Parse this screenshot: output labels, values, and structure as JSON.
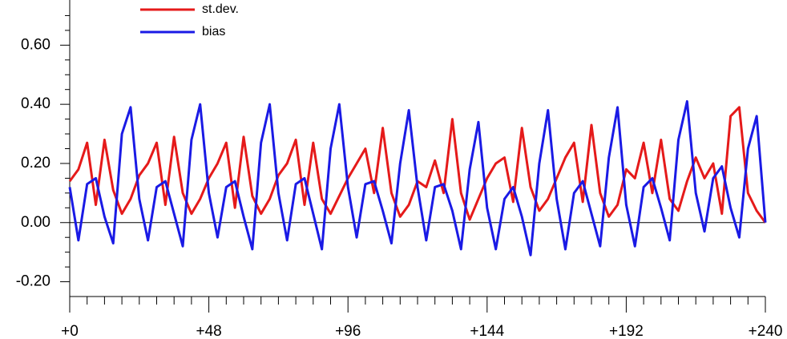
{
  "chart_data": {
    "type": "line",
    "x": [
      0,
      3,
      6,
      9,
      12,
      15,
      18,
      21,
      24,
      27,
      30,
      33,
      36,
      39,
      42,
      45,
      48,
      51,
      54,
      57,
      60,
      63,
      66,
      69,
      72,
      75,
      78,
      81,
      84,
      87,
      90,
      93,
      96,
      99,
      102,
      105,
      108,
      111,
      114,
      117,
      120,
      123,
      126,
      129,
      132,
      135,
      138,
      141,
      144,
      147,
      150,
      153,
      156,
      159,
      162,
      165,
      168,
      171,
      174,
      177,
      180,
      183,
      186,
      189,
      192,
      195,
      198,
      201,
      204,
      207,
      210,
      213,
      216,
      219,
      222,
      225,
      228,
      231,
      234,
      237,
      240
    ],
    "series": [
      {
        "name": "st.dev.",
        "color": "#e51a1a",
        "values": [
          0.14,
          0.18,
          0.27,
          0.06,
          0.28,
          0.11,
          0.03,
          0.08,
          0.16,
          0.2,
          0.27,
          0.06,
          0.29,
          0.1,
          0.03,
          0.08,
          0.15,
          0.2,
          0.27,
          0.05,
          0.29,
          0.09,
          0.03,
          0.08,
          0.16,
          0.2,
          0.28,
          0.06,
          0.27,
          0.08,
          0.03,
          0.09,
          0.15,
          0.2,
          0.25,
          0.1,
          0.32,
          0.1,
          0.02,
          0.06,
          0.14,
          0.12,
          0.21,
          0.1,
          0.35,
          0.1,
          0.01,
          0.08,
          0.15,
          0.2,
          0.22,
          0.07,
          0.32,
          0.12,
          0.04,
          0.08,
          0.15,
          0.22,
          0.27,
          0.07,
          0.33,
          0.1,
          0.02,
          0.06,
          0.18,
          0.15,
          0.27,
          0.1,
          0.28,
          0.08,
          0.04,
          0.14,
          0.22,
          0.15,
          0.2,
          0.03,
          0.36,
          0.39,
          0.1,
          0.04,
          0.0
        ]
      },
      {
        "name": "bias",
        "color": "#1a1ae5",
        "values": [
          0.12,
          -0.06,
          0.13,
          0.15,
          0.02,
          -0.07,
          0.3,
          0.39,
          0.08,
          -0.06,
          0.12,
          0.14,
          0.03,
          -0.08,
          0.28,
          0.4,
          0.1,
          -0.05,
          0.12,
          0.14,
          0.02,
          -0.09,
          0.27,
          0.4,
          0.1,
          -0.06,
          0.13,
          0.15,
          0.03,
          -0.09,
          0.25,
          0.4,
          0.12,
          -0.05,
          0.13,
          0.14,
          0.04,
          -0.07,
          0.2,
          0.38,
          0.12,
          -0.06,
          0.12,
          0.13,
          0.04,
          -0.09,
          0.18,
          0.34,
          0.05,
          -0.09,
          0.08,
          0.12,
          0.02,
          -0.11,
          0.2,
          0.38,
          0.08,
          -0.09,
          0.1,
          0.14,
          0.03,
          -0.08,
          0.22,
          0.39,
          0.06,
          -0.08,
          0.12,
          0.15,
          0.05,
          -0.06,
          0.28,
          0.41,
          0.1,
          -0.03,
          0.15,
          0.19,
          0.05,
          -0.05,
          0.25,
          0.36,
          0.0
        ]
      }
    ],
    "xlim": [
      0,
      240
    ],
    "xticks": [
      {
        "value": 0,
        "label": "+0"
      },
      {
        "value": 48,
        "label": "+48"
      },
      {
        "value": 96,
        "label": "+96"
      },
      {
        "value": 144,
        "label": "+144"
      },
      {
        "value": 192,
        "label": "+192"
      },
      {
        "value": 240,
        "label": "+240"
      }
    ],
    "xminor_ticks": [
      6,
      12,
      18,
      24,
      30,
      36,
      42,
      54,
      60,
      66,
      72,
      78,
      84,
      90,
      102,
      108,
      114,
      120,
      126,
      132,
      138,
      150,
      156,
      162,
      168,
      174,
      180,
      186,
      198,
      204,
      210,
      216,
      222,
      228,
      234
    ],
    "ylim": [
      -0.25,
      0.75
    ],
    "yticks": [
      {
        "value": -0.2,
        "label": "-0.20"
      },
      {
        "value": 0,
        "label": "0.00"
      },
      {
        "value": 0.2,
        "label": "0.20"
      },
      {
        "value": 0.4,
        "label": "0.40"
      },
      {
        "value": 0.6,
        "label": "0.60"
      }
    ],
    "yminor_ticks": [
      -0.15,
      -0.1,
      -0.05,
      0.05,
      0.1,
      0.15,
      0.25,
      0.3,
      0.35,
      0.45,
      0.5,
      0.55,
      0.65,
      0.7
    ],
    "reference_line": 0,
    "legend": "top-left"
  }
}
